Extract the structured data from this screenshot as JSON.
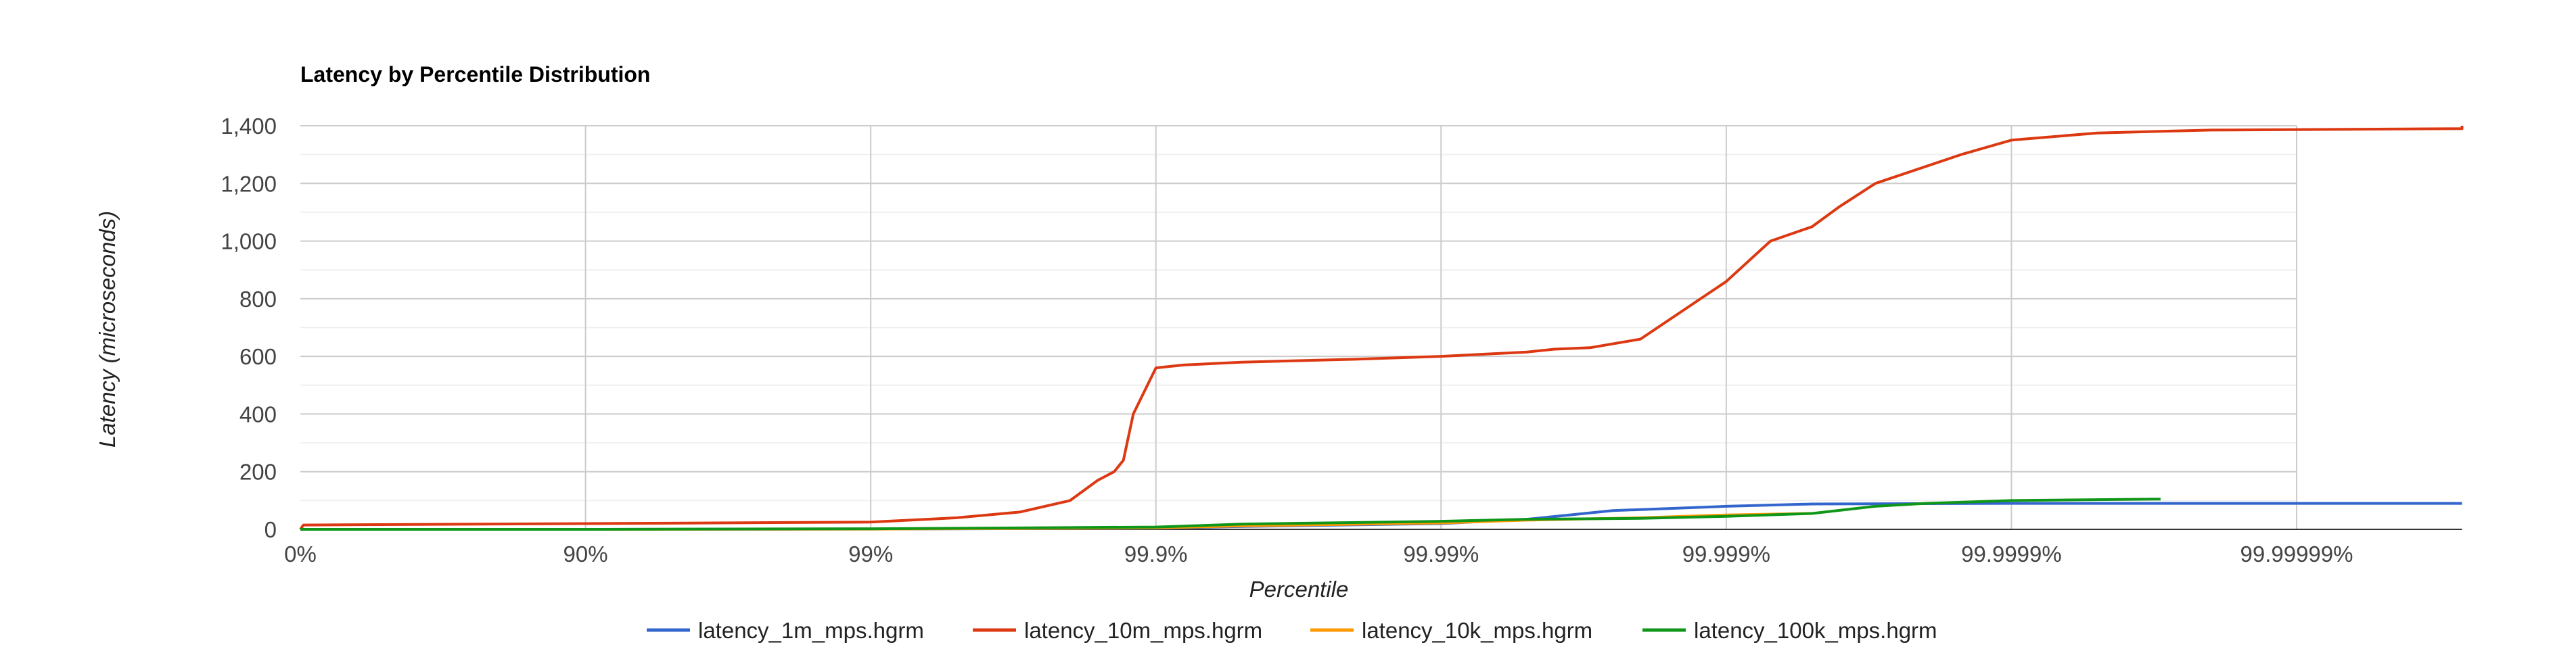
{
  "chart_data": {
    "type": "line",
    "title": "Latency by Percentile Distribution",
    "xlabel": "Percentile",
    "ylabel": "Latency (microseconds)",
    "x_scale": "log(1/(1-p))",
    "x_ticks": [
      "0%",
      "90%",
      "99%",
      "99.9%",
      "99.99%",
      "99.999%",
      "99.9999%",
      "99.99999%"
    ],
    "ylim": [
      0,
      1400
    ],
    "y_ticks": [
      "0",
      "200",
      "400",
      "600",
      "800",
      "1,000",
      "1,200",
      "1,400"
    ],
    "y_tick_values": [
      0,
      200,
      400,
      600,
      800,
      1000,
      1200,
      1400
    ],
    "grid": true,
    "legend_position": "bottom",
    "series": [
      {
        "name": "latency_1m_mps.hgrm",
        "color": "#3366cc",
        "x": [
          "0%",
          "90%",
          "99%",
          "99.9%",
          "99.95%",
          "99.99%",
          "99.995%",
          "99.9975%",
          "99.999%",
          "99.9995%",
          "99.9999%",
          "99.99999%",
          "99.999999%"
        ],
        "y": [
          0,
          0,
          1,
          4,
          10,
          20,
          35,
          65,
          80,
          88,
          90,
          90,
          90
        ]
      },
      {
        "name": "latency_10m_mps.hgrm",
        "color": "#dc3912",
        "x": [
          "0%",
          "2.5%",
          "90%",
          "99%",
          "99.5%",
          "99.7%",
          "99.8%",
          "99.84%",
          "99.86%",
          "99.87%",
          "99.88%",
          "99.9%",
          "99.91%",
          "99.92%",
          "99.95%",
          "99.98%",
          "99.99%",
          "99.995%",
          "99.996%",
          "99.997%",
          "99.998%",
          "99.999%",
          "99.9993%",
          "99.9995%",
          "99.9996%",
          "99.9997%",
          "99.99985%",
          "99.9999%",
          "99.99995%",
          "99.99998%",
          "99.999999%",
          "99.9999999%"
        ],
        "y": [
          0,
          15,
          20,
          25,
          40,
          60,
          100,
          170,
          200,
          240,
          400,
          560,
          565,
          570,
          580,
          590,
          600,
          615,
          625,
          630,
          660,
          860,
          1000,
          1050,
          1120,
          1200,
          1300,
          1350,
          1375,
          1385,
          1390,
          1400
        ]
      },
      {
        "name": "latency_10k_mps.hgrm",
        "color": "#ff9900",
        "x": [
          "0%",
          "90%",
          "99%",
          "99.9%",
          "99.95%",
          "99.99%",
          "99.995%",
          "99.998%",
          "99.999%",
          "99.9995%"
        ],
        "y": [
          0,
          0,
          1,
          5,
          12,
          22,
          32,
          40,
          50,
          55
        ]
      },
      {
        "name": "latency_100k_mps.hgrm",
        "color": "#109618",
        "x": [
          "0%",
          "90%",
          "99%",
          "99.9%",
          "99.95%",
          "99.99%",
          "99.995%",
          "99.998%",
          "99.999%",
          "99.9995%",
          "99.9997%",
          "99.9998%",
          "99.9999%",
          "99.99997%"
        ],
        "y": [
          0,
          0,
          2,
          8,
          18,
          28,
          35,
          38,
          45,
          55,
          80,
          90,
          100,
          105
        ]
      }
    ]
  }
}
